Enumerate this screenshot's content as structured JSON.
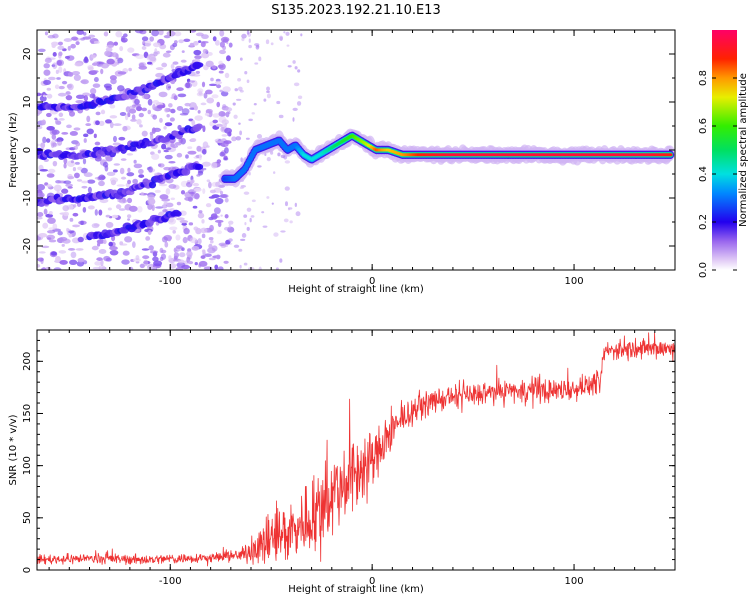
{
  "title": "S135.2023.192.21.10.E13",
  "colors": {
    "snr_line": "#ee3333",
    "noise": "#9a66e8",
    "axis": "#000000",
    "background": "#ffffff"
  },
  "chart_data": [
    {
      "type": "heatmap",
      "title": "S135.2023.192.21.10.E13",
      "xlabel": "Height of straight line (km)",
      "ylabel": "Frequency (Hz)",
      "xlim": [
        -166,
        150
      ],
      "ylim": [
        -25,
        25
      ],
      "x_ticks": [
        -100,
        0,
        100
      ],
      "y_ticks": [
        -20,
        -10,
        0,
        10,
        20
      ],
      "x_tick_labels": [
        "-100",
        "0",
        "100"
      ],
      "y_tick_labels": [
        "-20",
        "-10",
        "0",
        "10",
        "20"
      ],
      "colorbar": {
        "label": "Normalized spectral amplitude",
        "range": [
          0,
          1
        ],
        "ticks": [
          "0.0",
          "0.2",
          "0.4",
          "0.6",
          "0.8"
        ],
        "tick_values": [
          0,
          0.2,
          0.4,
          0.6,
          0.8
        ],
        "colormap": "hsv-rainbow (white at 0, purple/blue low, cyan, green, yellow, orange, red/magenta high)"
      },
      "main_trace": {
        "description": "strong spectral line, noisy before ~-75 km, around 0 Hz afterwards",
        "x": [
          -73,
          -68,
          -63,
          -58,
          -52,
          -46,
          -42,
          -38,
          -34,
          -30,
          -26,
          -22,
          -18,
          -14,
          -10,
          -6,
          -2,
          2,
          8,
          15,
          25,
          40,
          60,
          80,
          95,
          100,
          120,
          135,
          148
        ],
        "y": [
          -6,
          -6,
          -4,
          0,
          1,
          2,
          0,
          1,
          -1,
          -2,
          -1,
          0,
          1,
          2,
          3,
          2,
          1,
          0,
          0,
          -1,
          -1,
          -1,
          -1,
          -1,
          -1,
          -1,
          -1,
          -1,
          -1
        ],
        "amplitude": [
          0.25,
          0.3,
          0.3,
          0.3,
          0.3,
          0.3,
          0.3,
          0.3,
          0.4,
          0.4,
          0.4,
          0.45,
          0.5,
          0.55,
          0.6,
          0.65,
          0.7,
          0.85,
          0.75,
          0.8,
          0.9,
          0.95,
          0.95,
          0.95,
          0.95,
          0.95,
          0.95,
          0.95,
          0.9
        ]
      },
      "drifting_tracks": [
        {
          "x": [
            -166,
            -145,
            -125,
            -105,
            -85
          ],
          "y": [
            9,
            9,
            11,
            14,
            18
          ]
        },
        {
          "x": [
            -166,
            -145,
            -125,
            -105,
            -85
          ],
          "y": [
            -1,
            -1,
            0,
            2,
            5
          ]
        },
        {
          "x": [
            -166,
            -145,
            -125,
            -105,
            -85
          ],
          "y": [
            -11,
            -10,
            -9,
            -6,
            -3
          ]
        },
        {
          "x": [
            -140,
            -125,
            -110,
            -95
          ],
          "y": [
            -18,
            -17,
            -15,
            -13
          ]
        }
      ]
    },
    {
      "type": "line",
      "xlabel": "Height of straight line (km)",
      "ylabel": "SNR (10 * v/v)",
      "xlim": [
        -166,
        150
      ],
      "ylim": [
        0,
        230
      ],
      "x_ticks": [
        -100,
        0,
        100
      ],
      "y_ticks": [
        0,
        50,
        100,
        150,
        200
      ],
      "x_tick_labels": [
        "-100",
        "0",
        "100"
      ],
      "y_tick_labels": [
        "0",
        "50",
        "100",
        "150",
        "200"
      ],
      "series": [
        {
          "color": "#ee3333",
          "x": [
            -166,
            -140,
            -110,
            -80,
            -65,
            -60,
            -55,
            -50,
            -45,
            -40,
            -35,
            -30,
            -25,
            -20,
            -15,
            -10,
            -5,
            0,
            5,
            10,
            15,
            20,
            25,
            30,
            40,
            50,
            60,
            70,
            80,
            90,
            100,
            110,
            113,
            115,
            130,
            150
          ],
          "y": [
            10,
            11,
            10,
            12,
            14,
            20,
            24,
            28,
            34,
            38,
            44,
            52,
            62,
            72,
            82,
            92,
            98,
            105,
            118,
            132,
            145,
            152,
            158,
            162,
            165,
            168,
            170,
            172,
            172,
            172,
            174,
            178,
            178,
            210,
            212,
            212
          ],
          "spread": [
            5,
            5,
            5,
            5,
            6,
            14,
            22,
            28,
            30,
            34,
            36,
            38,
            40,
            42,
            42,
            42,
            38,
            32,
            24,
            18,
            14,
            12,
            12,
            12,
            12,
            12,
            12,
            12,
            14,
            12,
            10,
            10,
            10,
            10,
            10,
            10
          ]
        }
      ]
    }
  ]
}
